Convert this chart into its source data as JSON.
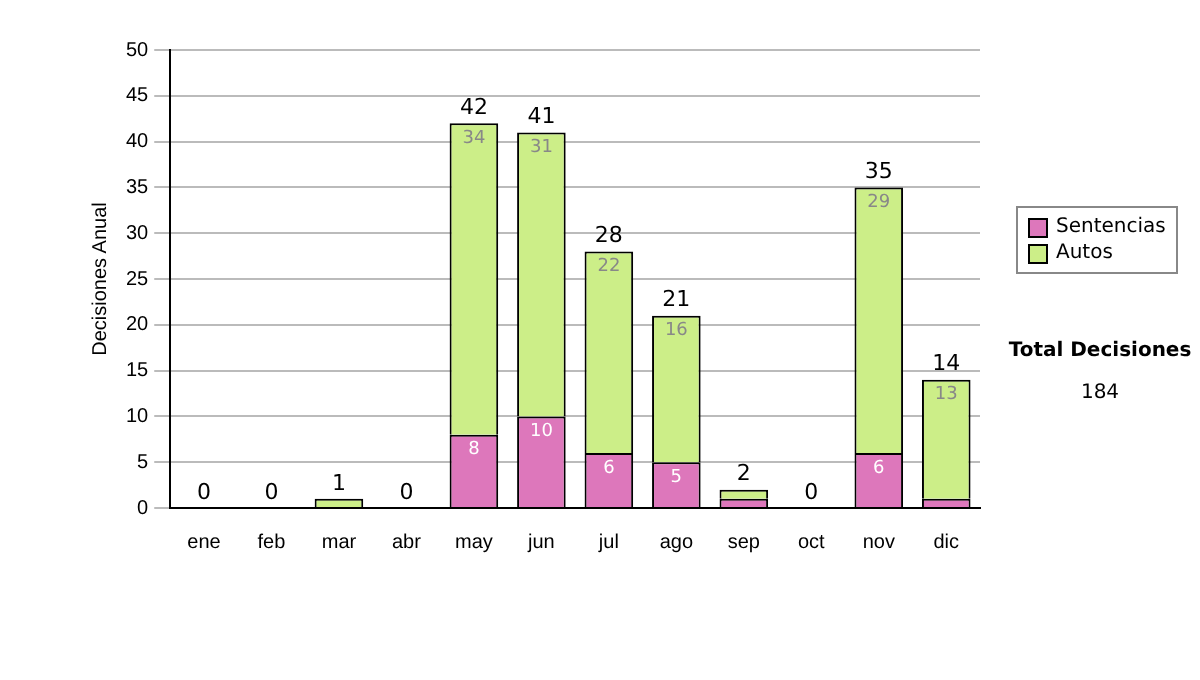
{
  "chart_data": {
    "type": "bar",
    "stacked": true,
    "ylabel": "Decisiones Anual",
    "categories": [
      "ene",
      "feb",
      "mar",
      "abr",
      "may",
      "jun",
      "jul",
      "ago",
      "sep",
      "oct",
      "nov",
      "dic"
    ],
    "series": [
      {
        "name": "Sentencias",
        "color": "#dd77bb",
        "values": [
          0,
          0,
          0,
          0,
          8,
          10,
          6,
          5,
          1,
          0,
          6,
          1
        ],
        "value_labels": [
          null,
          null,
          null,
          null,
          "8",
          "10",
          "6",
          "5",
          null,
          null,
          "6",
          null
        ]
      },
      {
        "name": "Autos",
        "color": "#ccee88",
        "values": [
          0,
          0,
          1,
          0,
          34,
          31,
          22,
          16,
          1,
          0,
          29,
          13
        ],
        "value_labels": [
          null,
          null,
          null,
          null,
          "34",
          "31",
          "22",
          "16",
          null,
          null,
          "29",
          "13"
        ]
      }
    ],
    "totals": [
      "0",
      "0",
      "1",
      "0",
      "42",
      "41",
      "28",
      "21",
      "2",
      "0",
      "35",
      "14"
    ],
    "ylim": [
      0,
      50
    ],
    "yticks": [
      0,
      5,
      10,
      15,
      20,
      25,
      30,
      35,
      40,
      45,
      50
    ],
    "grid": "y",
    "legend": "right",
    "annotations": [
      "Total Decisiones",
      "184"
    ]
  }
}
